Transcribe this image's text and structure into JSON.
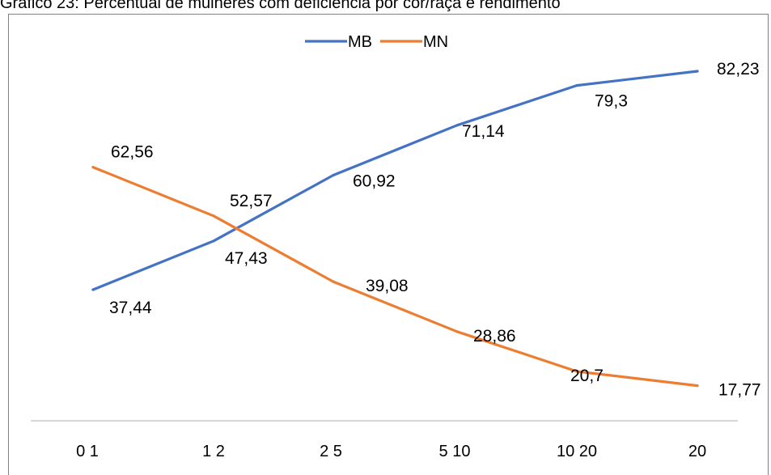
{
  "chart_data": {
    "type": "line",
    "title": "Gráfico 23: Percentual de mulheres com deficiência por cor/raça e rendimento",
    "categories": [
      "0 1",
      "1 2",
      "2 5",
      "5 10",
      "10 20",
      "20"
    ],
    "series": [
      {
        "name": "MB",
        "color": "#4472c4",
        "values": [
          37.44,
          47.43,
          60.92,
          71.14,
          79.3,
          82.23
        ],
        "labels": [
          "37,44",
          "47,43",
          "60,92",
          "71,14",
          "79,3",
          "82,23"
        ]
      },
      {
        "name": "MN",
        "color": "#ed7d31",
        "values": [
          62.56,
          52.57,
          39.08,
          28.86,
          20.7,
          17.77
        ],
        "labels": [
          "62,56",
          "52,57",
          "39,08",
          "28,86",
          "20,7",
          "17,77"
        ]
      }
    ],
    "xlabel": "",
    "ylabel": "",
    "grid": false,
    "legend": "top-center"
  }
}
